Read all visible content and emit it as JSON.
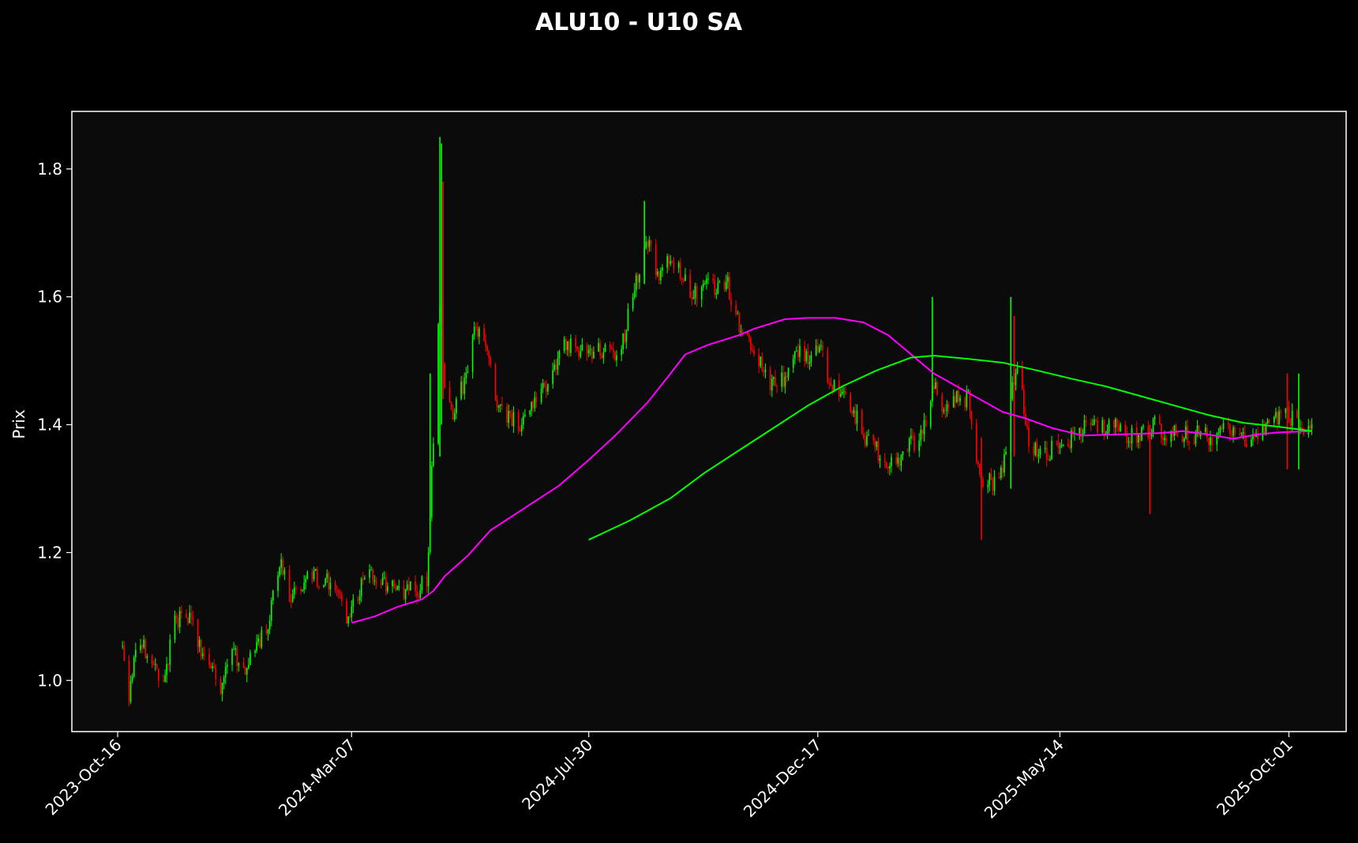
{
  "chart_data": {
    "type": "candlestick",
    "title": "ALU10 - U10 SA",
    "xlabel": "",
    "ylabel": "Prix",
    "ylim": [
      0.92,
      1.89
    ],
    "xlim": [
      "2023-09-18",
      "2025-11-05"
    ],
    "grid": false,
    "background": "#0b0b0b",
    "figure_background": "#000000",
    "up_color": "#00ff00",
    "down_color": "#ff0000",
    "y_ticks": [
      {
        "value": 1.0,
        "label": "1.0"
      },
      {
        "value": 1.2,
        "label": "1.2"
      },
      {
        "value": 1.4,
        "label": "1.4"
      },
      {
        "value": 1.6,
        "label": "1.6"
      },
      {
        "value": 1.8,
        "label": "1.8"
      }
    ],
    "x_ticks": [
      {
        "date": "2023-10-16",
        "label": "2023-Oct-16"
      },
      {
        "date": "2024-03-07",
        "label": "2024-Mar-07"
      },
      {
        "date": "2024-07-30",
        "label": "2024-Jul-30"
      },
      {
        "date": "2024-12-17",
        "label": "2024-Dec-17"
      },
      {
        "date": "2025-05-14",
        "label": "2025-May-14"
      },
      {
        "date": "2025-10-01",
        "label": "2025-Oct-01"
      }
    ],
    "ohlc_path": [
      [
        "2023-10-19",
        1.06
      ],
      [
        "2023-10-23",
        0.97
      ],
      [
        "2023-10-26",
        1.03
      ],
      [
        "2023-10-31",
        1.06
      ],
      [
        "2023-11-06",
        1.03
      ],
      [
        "2023-11-13",
        1.0
      ],
      [
        "2023-11-20",
        1.09
      ],
      [
        "2023-11-27",
        1.11
      ],
      [
        "2023-12-04",
        1.06
      ],
      [
        "2023-12-11",
        1.03
      ],
      [
        "2023-12-18",
        0.99
      ],
      [
        "2023-12-26",
        1.04
      ],
      [
        "2024-01-02",
        1.02
      ],
      [
        "2024-01-09",
        1.05
      ],
      [
        "2024-01-16",
        1.09
      ],
      [
        "2024-01-23",
        1.19
      ],
      [
        "2024-01-29",
        1.13
      ],
      [
        "2024-02-05",
        1.15
      ],
      [
        "2024-02-12",
        1.16
      ],
      [
        "2024-02-19",
        1.16
      ],
      [
        "2024-02-26",
        1.15
      ],
      [
        "2024-03-04",
        1.08
      ],
      [
        "2024-03-11",
        1.14
      ],
      [
        "2024-03-18",
        1.17
      ],
      [
        "2024-03-25",
        1.16
      ],
      [
        "2024-04-02",
        1.14
      ],
      [
        "2024-04-10",
        1.14
      ],
      [
        "2024-04-16",
        1.14
      ],
      [
        "2024-04-22",
        1.16
      ],
      [
        "2024-04-26",
        1.38
      ],
      [
        "2024-04-30",
        1.6
      ],
      [
        "2024-05-03",
        1.45
      ],
      [
        "2024-05-08",
        1.42
      ],
      [
        "2024-05-15",
        1.47
      ],
      [
        "2024-05-22",
        1.55
      ],
      [
        "2024-05-29",
        1.52
      ],
      [
        "2024-06-04",
        1.43
      ],
      [
        "2024-06-11",
        1.41
      ],
      [
        "2024-06-18",
        1.4
      ],
      [
        "2024-06-25",
        1.43
      ],
      [
        "2024-07-02",
        1.46
      ],
      [
        "2024-07-09",
        1.48
      ],
      [
        "2024-07-16",
        1.53
      ],
      [
        "2024-07-23",
        1.52
      ],
      [
        "2024-07-30",
        1.51
      ],
      [
        "2024-08-06",
        1.52
      ],
      [
        "2024-08-13",
        1.51
      ],
      [
        "2024-08-20",
        1.53
      ],
      [
        "2024-08-26",
        1.61
      ],
      [
        "2024-08-30",
        1.64
      ],
      [
        "2024-09-04",
        1.69
      ],
      [
        "2024-09-11",
        1.63
      ],
      [
        "2024-09-18",
        1.66
      ],
      [
        "2024-09-25",
        1.63
      ],
      [
        "2024-10-02",
        1.6
      ],
      [
        "2024-10-09",
        1.62
      ],
      [
        "2024-10-16",
        1.61
      ],
      [
        "2024-10-23",
        1.62
      ],
      [
        "2024-10-30",
        1.55
      ],
      [
        "2024-11-06",
        1.53
      ],
      [
        "2024-11-13",
        1.49
      ],
      [
        "2024-11-20",
        1.46
      ],
      [
        "2024-11-27",
        1.47
      ],
      [
        "2024-12-04",
        1.52
      ],
      [
        "2024-12-11",
        1.5
      ],
      [
        "2024-12-18",
        1.53
      ],
      [
        "2024-12-24",
        1.47
      ],
      [
        "2025-01-01",
        1.45
      ],
      [
        "2025-01-08",
        1.42
      ],
      [
        "2025-01-15",
        1.38
      ],
      [
        "2025-01-22",
        1.36
      ],
      [
        "2025-01-29",
        1.33
      ],
      [
        "2025-02-05",
        1.35
      ],
      [
        "2025-02-12",
        1.37
      ],
      [
        "2025-02-19",
        1.38
      ],
      [
        "2025-02-26",
        1.47
      ],
      [
        "2025-03-05",
        1.42
      ],
      [
        "2025-03-12",
        1.44
      ],
      [
        "2025-03-19",
        1.44
      ],
      [
        "2025-03-26",
        1.32
      ],
      [
        "2025-04-02",
        1.31
      ],
      [
        "2025-04-09",
        1.32
      ],
      [
        "2025-04-14",
        1.45
      ],
      [
        "2025-04-18",
        1.5
      ],
      [
        "2025-04-25",
        1.37
      ],
      [
        "2025-05-02",
        1.35
      ],
      [
        "2025-05-09",
        1.36
      ],
      [
        "2025-05-16",
        1.37
      ],
      [
        "2025-05-23",
        1.38
      ],
      [
        "2025-05-30",
        1.4
      ],
      [
        "2025-06-06",
        1.39
      ],
      [
        "2025-06-13",
        1.4
      ],
      [
        "2025-06-20",
        1.39
      ],
      [
        "2025-06-27",
        1.38
      ],
      [
        "2025-07-04",
        1.39
      ],
      [
        "2025-07-11",
        1.4
      ],
      [
        "2025-07-18",
        1.38
      ],
      [
        "2025-07-25",
        1.39
      ],
      [
        "2025-08-01",
        1.38
      ],
      [
        "2025-08-08",
        1.39
      ],
      [
        "2025-08-15",
        1.38
      ],
      [
        "2025-08-22",
        1.39
      ],
      [
        "2025-08-29",
        1.39
      ],
      [
        "2025-09-05",
        1.38
      ],
      [
        "2025-09-12",
        1.38
      ],
      [
        "2025-09-19",
        1.4
      ],
      [
        "2025-09-26",
        1.42
      ],
      [
        "2025-10-03",
        1.41
      ],
      [
        "2025-10-10",
        1.39
      ],
      [
        "2025-10-15",
        1.4
      ]
    ],
    "spikes": [
      {
        "date": "2024-04-24",
        "low": 1.24,
        "high": 1.48,
        "up": true
      },
      {
        "date": "2024-04-30",
        "low": 1.35,
        "high": 1.85,
        "up": true
      },
      {
        "date": "2024-05-01",
        "low": 1.4,
        "high": 1.84,
        "up": true
      },
      {
        "date": "2024-05-02",
        "low": 1.44,
        "high": 1.78,
        "up": false
      },
      {
        "date": "2024-09-02",
        "low": 1.62,
        "high": 1.75,
        "up": true
      },
      {
        "date": "2025-02-25",
        "low": 1.44,
        "high": 1.6,
        "up": true
      },
      {
        "date": "2025-03-27",
        "low": 1.22,
        "high": 1.38,
        "up": false
      },
      {
        "date": "2025-04-14",
        "low": 1.3,
        "high": 1.6,
        "up": true
      },
      {
        "date": "2025-04-16",
        "low": 1.35,
        "high": 1.57,
        "up": false
      },
      {
        "date": "2025-07-08",
        "low": 1.26,
        "high": 1.4,
        "up": false
      },
      {
        "date": "2025-09-30",
        "low": 1.33,
        "high": 1.48,
        "up": false
      },
      {
        "date": "2025-10-07",
        "low": 1.33,
        "high": 1.48,
        "up": true
      }
    ],
    "series": [
      {
        "color": "#ff00ff",
        "points": [
          [
            "2024-03-07",
            1.09
          ],
          [
            "2024-03-21",
            1.1
          ],
          [
            "2024-04-04",
            1.115
          ],
          [
            "2024-04-19",
            1.127
          ],
          [
            "2024-04-26",
            1.14
          ],
          [
            "2024-05-03",
            1.163
          ],
          [
            "2024-05-17",
            1.195
          ],
          [
            "2024-05-31",
            1.235
          ],
          [
            "2024-06-21",
            1.27
          ],
          [
            "2024-07-12",
            1.305
          ],
          [
            "2024-07-30",
            1.345
          ],
          [
            "2024-08-16",
            1.385
          ],
          [
            "2024-09-04",
            1.435
          ],
          [
            "2024-09-18",
            1.48
          ],
          [
            "2024-09-27",
            1.51
          ],
          [
            "2024-10-11",
            1.525
          ],
          [
            "2024-10-30",
            1.54
          ],
          [
            "2024-11-08",
            1.55
          ],
          [
            "2024-11-27",
            1.565
          ],
          [
            "2024-12-11",
            1.567
          ],
          [
            "2024-12-28",
            1.567
          ],
          [
            "2025-01-14",
            1.56
          ],
          [
            "2025-01-29",
            1.54
          ],
          [
            "2025-02-12",
            1.51
          ],
          [
            "2025-02-26",
            1.48
          ],
          [
            "2025-03-12",
            1.46
          ],
          [
            "2025-03-26",
            1.44
          ],
          [
            "2025-04-09",
            1.42
          ],
          [
            "2025-04-23",
            1.41
          ],
          [
            "2025-05-09",
            1.395
          ],
          [
            "2025-05-28",
            1.383
          ],
          [
            "2025-06-20",
            1.385
          ],
          [
            "2025-07-15",
            1.387
          ],
          [
            "2025-07-28",
            1.39
          ],
          [
            "2025-08-12",
            1.385
          ],
          [
            "2025-08-28",
            1.378
          ],
          [
            "2025-09-12",
            1.385
          ],
          [
            "2025-09-25",
            1.388
          ],
          [
            "2025-10-15",
            1.39
          ]
        ]
      },
      {
        "color": "#00ff00",
        "points": [
          [
            "2024-07-30",
            1.22
          ],
          [
            "2024-08-24",
            1.25
          ],
          [
            "2024-09-18",
            1.285
          ],
          [
            "2024-10-09",
            1.325
          ],
          [
            "2024-10-30",
            1.36
          ],
          [
            "2024-11-20",
            1.395
          ],
          [
            "2024-12-11",
            1.43
          ],
          [
            "2025-01-01",
            1.46
          ],
          [
            "2025-01-22",
            1.485
          ],
          [
            "2025-02-12",
            1.505
          ],
          [
            "2025-02-26",
            1.508
          ],
          [
            "2025-03-19",
            1.503
          ],
          [
            "2025-04-09",
            1.497
          ],
          [
            "2025-04-30",
            1.485
          ],
          [
            "2025-05-21",
            1.472
          ],
          [
            "2025-06-11",
            1.46
          ],
          [
            "2025-07-02",
            1.445
          ],
          [
            "2025-07-23",
            1.43
          ],
          [
            "2025-08-13",
            1.415
          ],
          [
            "2025-09-03",
            1.403
          ],
          [
            "2025-09-24",
            1.397
          ],
          [
            "2025-10-15",
            1.39
          ]
        ]
      }
    ]
  }
}
